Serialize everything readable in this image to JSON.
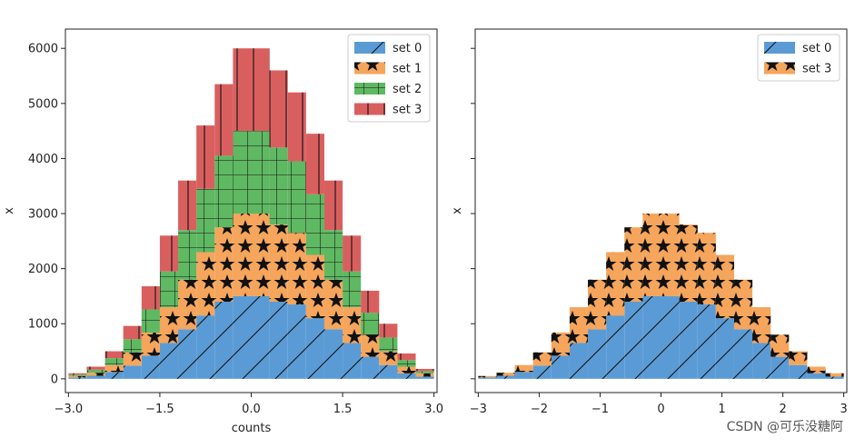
{
  "chart_data": [
    {
      "type": "bar",
      "subtype": "stacked-histogram",
      "xlabel": "counts",
      "ylabel": "x",
      "xlim": [
        -3.05,
        3.05
      ],
      "ylim": [
        -250,
        6350
      ],
      "xticks": [
        -3.0,
        -1.5,
        0.0,
        1.5,
        3.0
      ],
      "xtick_labels": [
        "−3.0",
        "−1.5",
        "0.0",
        "1.5",
        "3.0"
      ],
      "yticks": [
        0,
        1000,
        2000,
        3000,
        4000,
        5000,
        6000
      ],
      "ytick_labels": [
        "0",
        "1000",
        "2000",
        "3000",
        "4000",
        "5000",
        "6000"
      ],
      "legend_position": "top-right",
      "bin_edges": [
        -3.0,
        -2.7,
        -2.4,
        -2.1,
        -1.8,
        -1.5,
        -1.2,
        -0.9,
        -0.6,
        -0.3,
        0.0,
        0.3,
        0.6,
        0.9,
        1.2,
        1.5,
        1.8,
        2.1,
        2.4,
        2.7,
        3.0
      ],
      "series": [
        {
          "name": "set 0",
          "color": "#5b9bd5",
          "hatch": "diagonal",
          "values": [
            25,
            55,
            125,
            240,
            420,
            650,
            900,
            1150,
            1400,
            1500,
            1500,
            1400,
            1350,
            1100,
            900,
            650,
            400,
            250,
            100,
            40
          ]
        },
        {
          "name": "set 1",
          "color": "#f5a55c",
          "hatch": "stars",
          "values": [
            25,
            55,
            125,
            240,
            420,
            650,
            900,
            1150,
            1350,
            1500,
            1500,
            1400,
            1300,
            1150,
            900,
            650,
            400,
            250,
            120,
            60
          ]
        },
        {
          "name": "set 2",
          "color": "#5fb862",
          "hatch": "grid",
          "values": [
            25,
            55,
            125,
            240,
            420,
            650,
            900,
            1150,
            1300,
            1500,
            1500,
            1400,
            1300,
            1100,
            900,
            650,
            400,
            250,
            120,
            40
          ]
        },
        {
          "name": "set 3",
          "color": "#d95f5f",
          "hatch": "vertical",
          "values": [
            25,
            55,
            125,
            240,
            420,
            650,
            900,
            1150,
            1300,
            1500,
            1500,
            1400,
            1250,
            1100,
            900,
            650,
            400,
            250,
            120,
            40
          ]
        }
      ]
    },
    {
      "type": "bar",
      "subtype": "stacked-histogram",
      "xlabel": "",
      "ylabel": "x",
      "xlim": [
        -3.05,
        3.05
      ],
      "ylim": [
        -250,
        6350
      ],
      "xticks": [
        -3,
        -2,
        -1,
        0,
        1,
        2,
        3
      ],
      "xtick_labels": [
        "−3",
        "−2",
        "−1",
        "0",
        "1",
        "2",
        "3"
      ],
      "yticks": [
        0,
        1000,
        2000,
        3000,
        4000,
        5000,
        6000
      ],
      "ytick_labels": [
        "",
        "",
        "",
        "",
        "",
        "",
        ""
      ],
      "legend_position": "top-right",
      "bin_edges": [
        -3.0,
        -2.7,
        -2.4,
        -2.1,
        -1.8,
        -1.5,
        -1.2,
        -0.9,
        -0.6,
        -0.3,
        0.0,
        0.3,
        0.6,
        0.9,
        1.2,
        1.5,
        1.8,
        2.1,
        2.4,
        2.7,
        3.0
      ],
      "series": [
        {
          "name": "set 0",
          "color": "#5b9bd5",
          "hatch": "diagonal",
          "values": [
            25,
            55,
            125,
            240,
            420,
            650,
            900,
            1150,
            1400,
            1500,
            1500,
            1400,
            1350,
            1100,
            900,
            650,
            400,
            250,
            100,
            40
          ]
        },
        {
          "name": "set 3",
          "color": "#f5a55c",
          "hatch": "stars",
          "values": [
            25,
            55,
            125,
            240,
            420,
            650,
            900,
            1150,
            1350,
            1500,
            1500,
            1400,
            1300,
            1150,
            900,
            650,
            400,
            250,
            120,
            60
          ]
        }
      ]
    }
  ],
  "watermark": "CSDN @可乐没糖阿"
}
